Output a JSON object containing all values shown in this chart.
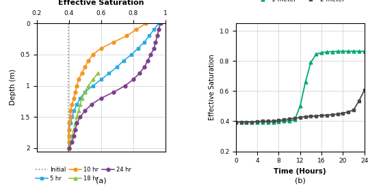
{
  "title_a": "Effective Saturation",
  "xlabel_b": "Time (Hours)",
  "ylabel_a": "Depth (m)",
  "ylabel_b": "Effective Saturation",
  "label_a": "(a)",
  "label_b": "(b)",
  "initial_x": 0.395,
  "xlim_a": [
    0.2,
    1.0
  ],
  "ylim_a": [
    0,
    2.05
  ],
  "depth_5hr": [
    0.0,
    0.1,
    0.2,
    0.3,
    0.4,
    0.5,
    0.6,
    0.7,
    0.8,
    0.9,
    1.0,
    1.1,
    1.2,
    1.3,
    1.4,
    1.5,
    1.6,
    1.7,
    1.8,
    1.9,
    2.0
  ],
  "sat_5hr": [
    0.96,
    0.93,
    0.9,
    0.87,
    0.83,
    0.79,
    0.74,
    0.7,
    0.65,
    0.6,
    0.55,
    0.5,
    0.47,
    0.45,
    0.43,
    0.42,
    0.41,
    0.4,
    0.4,
    0.4,
    0.4
  ],
  "depth_10hr": [
    0.0,
    0.1,
    0.2,
    0.3,
    0.4,
    0.5,
    0.6,
    0.7,
    0.8,
    0.9,
    1.0,
    1.1,
    1.2,
    1.3,
    1.4,
    1.5,
    1.6,
    1.7,
    1.8,
    1.9,
    2.0
  ],
  "sat_10hr": [
    0.88,
    0.82,
    0.76,
    0.68,
    0.6,
    0.55,
    0.52,
    0.5,
    0.48,
    0.46,
    0.45,
    0.44,
    0.43,
    0.42,
    0.41,
    0.41,
    0.4,
    0.4,
    0.4,
    0.4,
    0.4
  ],
  "depth_18hr": [
    0.8,
    0.9,
    1.0,
    1.1,
    1.2,
    1.3,
    1.4,
    1.5,
    1.6,
    1.7,
    1.8,
    1.9,
    2.0
  ],
  "sat_18hr": [
    0.58,
    0.55,
    0.52,
    0.5,
    0.48,
    0.47,
    0.46,
    0.45,
    0.44,
    0.43,
    0.42,
    0.41,
    0.4
  ],
  "depth_24hr": [
    0.0,
    0.1,
    0.2,
    0.3,
    0.4,
    0.5,
    0.6,
    0.7,
    0.8,
    0.9,
    1.0,
    1.1,
    1.2,
    1.3,
    1.4,
    1.5,
    1.6,
    1.7,
    1.8,
    1.9,
    2.0
  ],
  "sat_24hr": [
    0.97,
    0.96,
    0.95,
    0.94,
    0.93,
    0.91,
    0.89,
    0.87,
    0.84,
    0.8,
    0.75,
    0.68,
    0.6,
    0.54,
    0.5,
    0.47,
    0.45,
    0.44,
    0.43,
    0.42,
    0.4
  ],
  "color_5hr": "#29ABE2",
  "color_10hr": "#F7941D",
  "color_18hr": "#8DC63F",
  "color_24hr": "#7B3F8C",
  "color_initial": "#888888",
  "time_b": [
    0,
    1,
    2,
    3,
    4,
    5,
    6,
    7,
    8,
    9,
    10,
    11,
    12,
    13,
    14,
    15,
    16,
    17,
    18,
    19,
    20,
    21,
    22,
    23,
    24
  ],
  "sat_1m": [
    0.395,
    0.395,
    0.395,
    0.395,
    0.395,
    0.395,
    0.395,
    0.395,
    0.398,
    0.4,
    0.402,
    0.41,
    0.5,
    0.66,
    0.79,
    0.845,
    0.855,
    0.86,
    0.862,
    0.863,
    0.864,
    0.864,
    0.864,
    0.864,
    0.864
  ],
  "sat_2m": [
    0.395,
    0.395,
    0.395,
    0.395,
    0.398,
    0.4,
    0.4,
    0.4,
    0.405,
    0.41,
    0.415,
    0.42,
    0.425,
    0.43,
    0.432,
    0.435,
    0.438,
    0.44,
    0.443,
    0.447,
    0.453,
    0.462,
    0.475,
    0.535,
    0.605
  ],
  "color_1m": "#00A878",
  "color_2m": "#4A4A4A",
  "xlim_b": [
    0,
    24
  ],
  "ylim_b": [
    0.2,
    1.05
  ],
  "xticks_b": [
    0,
    4,
    8,
    12,
    16,
    20,
    24
  ],
  "yticks_b": [
    0.2,
    0.4,
    0.6,
    0.8,
    1.0
  ]
}
